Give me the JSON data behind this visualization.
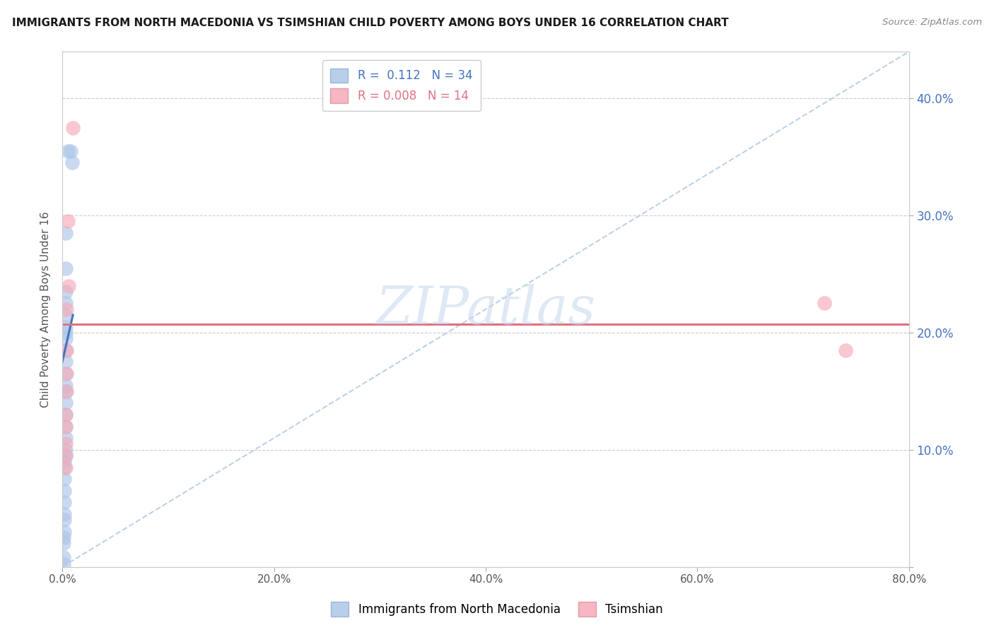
{
  "title": "IMMIGRANTS FROM NORTH MACEDONIA VS TSIMSHIAN CHILD POVERTY AMONG BOYS UNDER 16 CORRELATION CHART",
  "source": "Source: ZipAtlas.com",
  "ylabel": "Child Poverty Among Boys Under 16",
  "xlim": [
    0.0,
    0.8
  ],
  "ylim": [
    0.0,
    0.44
  ],
  "yticks": [
    0.0,
    0.1,
    0.2,
    0.3,
    0.4
  ],
  "xticks": [
    0.0,
    0.2,
    0.4,
    0.6,
    0.8
  ],
  "xtick_labels": [
    "0.0%",
    "20.0%",
    "40.0%",
    "60.0%",
    "80.0%"
  ],
  "ytick_labels_right": [
    "",
    "10.0%",
    "20.0%",
    "30.0%",
    "40.0%"
  ],
  "blue_color": "#adc6e8",
  "pink_color": "#f5aab8",
  "blue_line_color": "#4472c4",
  "pink_line_color": "#e07080",
  "dashed_line_color": "#b8cce4",
  "legend_blue_r": "0.112",
  "legend_blue_n": "34",
  "legend_pink_r": "0.008",
  "legend_pink_n": "14",
  "watermark": "ZIPatlas",
  "blue_scatter_x": [
    0.005,
    0.008,
    0.009,
    0.003,
    0.003,
    0.003,
    0.003,
    0.003,
    0.003,
    0.003,
    0.003,
    0.003,
    0.003,
    0.003,
    0.003,
    0.003,
    0.003,
    0.003,
    0.003,
    0.003,
    0.003,
    0.003,
    0.002,
    0.002,
    0.002,
    0.002,
    0.002,
    0.002,
    0.002,
    0.002,
    0.001,
    0.001,
    0.001,
    0.001
  ],
  "blue_scatter_y": [
    0.355,
    0.355,
    0.345,
    0.285,
    0.255,
    0.235,
    0.225,
    0.215,
    0.205,
    0.2,
    0.195,
    0.185,
    0.175,
    0.165,
    0.155,
    0.15,
    0.14,
    0.13,
    0.12,
    0.11,
    0.1,
    0.095,
    0.09,
    0.085,
    0.075,
    0.065,
    0.055,
    0.045,
    0.04,
    0.03,
    0.025,
    0.02,
    0.008,
    0.002
  ],
  "pink_scatter_x": [
    0.01,
    0.005,
    0.006,
    0.004,
    0.004,
    0.004,
    0.004,
    0.003,
    0.003,
    0.003,
    0.003,
    0.003,
    0.72,
    0.74
  ],
  "pink_scatter_y": [
    0.375,
    0.295,
    0.24,
    0.22,
    0.185,
    0.165,
    0.15,
    0.13,
    0.12,
    0.105,
    0.095,
    0.085,
    0.225,
    0.185
  ],
  "blue_regline_x": [
    0.0,
    0.01
  ],
  "blue_regline_y": [
    0.175,
    0.215
  ],
  "pink_regline_x": [
    0.0,
    0.8
  ],
  "pink_regline_y": [
    0.207,
    0.207
  ],
  "dashed_line_x": [
    0.0,
    0.8
  ],
  "dashed_line_y": [
    0.0,
    0.44
  ]
}
